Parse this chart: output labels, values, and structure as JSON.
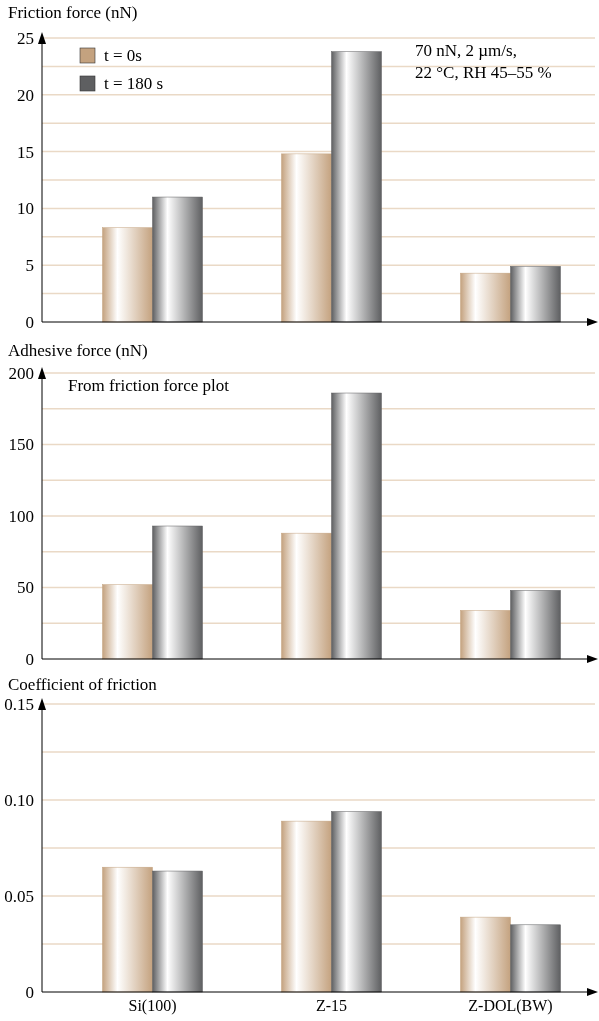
{
  "chart_data": [
    {
      "type": "bar",
      "ylabel": "Friction force (nN)",
      "categories": [
        null,
        null,
        null
      ],
      "series": [
        {
          "name": "t = 0s",
          "color": "#c4a27f",
          "values": [
            8.3,
            14.8,
            4.3
          ]
        },
        {
          "name": "t = 180 s",
          "color": "#5e5f61",
          "values": [
            11,
            23.8,
            4.9
          ]
        }
      ],
      "ylim": [
        0,
        25
      ],
      "yticks": [
        0,
        {
          "value": 2.5,
          "label": null
        },
        5,
        {
          "value": 7.5,
          "label": null
        },
        10,
        {
          "value": 12.5,
          "label": null
        },
        15,
        {
          "value": 17.5,
          "label": null
        },
        20,
        {
          "value": 22.5,
          "label": null
        },
        25
      ],
      "grid": "y",
      "legend": "top left",
      "tick_labels": "y",
      "annotations": [
        "70 nN, 2 µm/s,\n22 °C, RH 45–55 %"
      ]
    },
    {
      "type": "bar",
      "ylabel": "Adhesive force (nN)",
      "categories": [
        null,
        null,
        null
      ],
      "series": [
        {
          "color": "#c4a27f",
          "values": [
            52,
            88,
            34
          ]
        },
        {
          "color": "#5e5f61",
          "values": [
            93,
            186,
            48
          ]
        }
      ],
      "ylim": [
        0,
        200
      ],
      "yticks": [
        0,
        {
          "value": 25,
          "label": null
        },
        50,
        {
          "value": 75,
          "label": null
        },
        100,
        {
          "value": 125,
          "label": null
        },
        150,
        {
          "value": 175,
          "label": null
        },
        200
      ],
      "grid": "y",
      "tick_labels": "y",
      "annotations": [
        "From friction force plot"
      ]
    },
    {
      "type": "bar",
      "ylabel": "Coefficient of friction",
      "categories": [
        "Si(100)",
        "Z-15",
        "Z-DOL(BW)"
      ],
      "series": [
        {
          "color": "#c4a27f",
          "values": [
            0.065,
            0.089,
            0.039
          ]
        },
        {
          "color": "#5e5f61",
          "values": [
            0.063,
            0.094,
            0.035
          ]
        }
      ],
      "ylim": [
        0,
        0.15
      ],
      "yticks": [
        0,
        {
          "value": 0.025,
          "label": null
        },
        0.05,
        {
          "value": 0.075,
          "label": null
        },
        {
          "value": 0.1,
          "label": "0.10"
        },
        {
          "value": 0.125,
          "label": null
        },
        0.15
      ],
      "grid": "y"
    }
  ]
}
